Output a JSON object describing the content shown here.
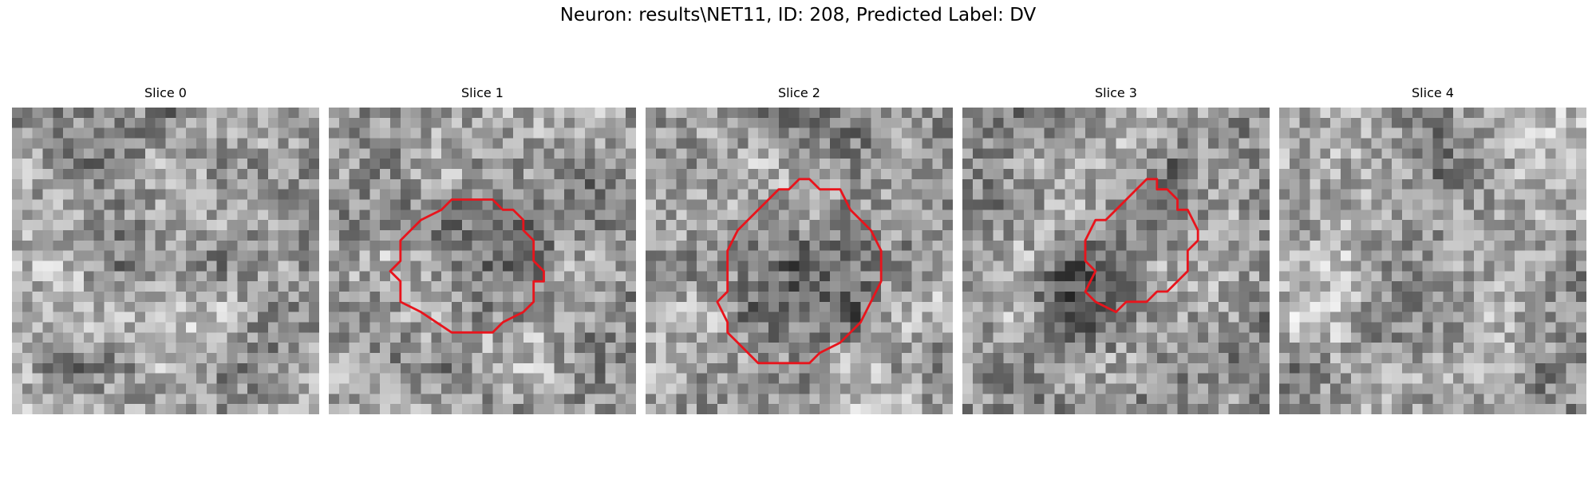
{
  "figure": {
    "title": "Neuron: results\\NET11, ID: 208, Predicted Label: DV"
  },
  "contour_color": "#e8141c",
  "panels": [
    {
      "title": "Slice 0",
      "seed": 11,
      "dark_blob": null,
      "contour": null
    },
    {
      "title": "Slice 1",
      "seed": 23,
      "dark_blob": {
        "cx": 15,
        "cy": 15,
        "r": 7
      },
      "contour": [
        [
          14,
          9
        ],
        [
          16,
          9
        ],
        [
          17,
          10
        ],
        [
          18,
          10
        ],
        [
          19,
          11
        ],
        [
          19,
          12
        ],
        [
          20,
          13
        ],
        [
          20,
          15
        ],
        [
          21,
          16
        ],
        [
          21,
          17
        ],
        [
          20,
          17
        ],
        [
          20,
          19
        ],
        [
          19,
          20
        ],
        [
          17,
          21
        ],
        [
          16,
          22
        ],
        [
          12,
          22
        ],
        [
          9,
          20
        ],
        [
          7,
          19
        ],
        [
          7,
          17
        ],
        [
          6,
          16
        ],
        [
          7,
          15
        ],
        [
          7,
          13
        ],
        [
          9,
          11
        ],
        [
          11,
          10
        ],
        [
          12,
          9
        ]
      ]
    },
    {
      "title": "Slice 2",
      "seed": 37,
      "dark_blob": {
        "cx": 15,
        "cy": 16,
        "r": 8
      },
      "contour": [
        [
          15,
          7
        ],
        [
          16,
          7
        ],
        [
          17,
          8
        ],
        [
          19,
          8
        ],
        [
          20,
          10
        ],
        [
          22,
          12
        ],
        [
          23,
          14
        ],
        [
          23,
          17
        ],
        [
          22,
          19
        ],
        [
          21,
          21
        ],
        [
          19,
          23
        ],
        [
          17,
          24
        ],
        [
          16,
          25
        ],
        [
          11,
          25
        ],
        [
          9,
          23
        ],
        [
          8,
          22
        ],
        [
          8,
          21
        ],
        [
          7,
          19
        ],
        [
          8,
          18
        ],
        [
          8,
          14
        ],
        [
          9,
          12
        ],
        [
          10,
          11
        ],
        [
          12,
          9
        ],
        [
          13,
          8
        ],
        [
          14,
          8
        ]
      ]
    },
    {
      "title": "Slice 3",
      "seed": 53,
      "dark_blob": {
        "cx": 11,
        "cy": 19,
        "r": 6
      },
      "contour": [
        [
          18,
          7
        ],
        [
          19,
          7
        ],
        [
          19,
          8
        ],
        [
          20,
          8
        ],
        [
          21,
          9
        ],
        [
          21,
          10
        ],
        [
          22,
          10
        ],
        [
          23,
          12
        ],
        [
          23,
          13
        ],
        [
          22,
          14
        ],
        [
          22,
          16
        ],
        [
          21,
          17
        ],
        [
          20,
          18
        ],
        [
          19,
          18
        ],
        [
          18,
          19
        ],
        [
          16,
          19
        ],
        [
          15,
          20
        ],
        [
          13,
          19
        ],
        [
          12,
          18
        ],
        [
          13,
          16
        ],
        [
          12,
          15
        ],
        [
          12,
          13
        ],
        [
          13,
          11
        ],
        [
          14,
          11
        ],
        [
          15,
          10
        ],
        [
          16,
          9
        ],
        [
          17,
          8
        ]
      ]
    },
    {
      "title": "Slice 4",
      "seed": 71,
      "dark_blob": null,
      "contour": null
    }
  ]
}
